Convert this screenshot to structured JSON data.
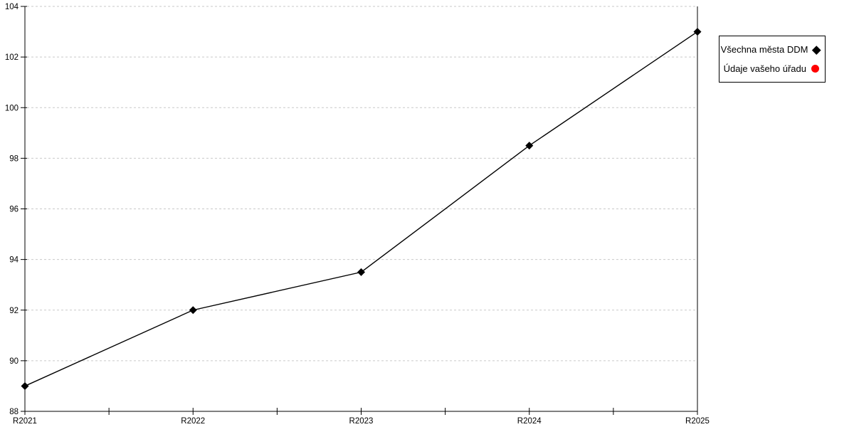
{
  "chart_data": {
    "type": "line",
    "title": "",
    "xlabel": "",
    "ylabel": "",
    "categories": [
      "R2021",
      "R2022",
      "R2023",
      "R2024",
      "R2025"
    ],
    "series": [
      {
        "name": "Všechna města DDM",
        "marker": "diamond",
        "color": "#000000",
        "values": [
          89,
          92,
          93.5,
          98.5,
          103
        ]
      },
      {
        "name": "Údaje vašeho úřadu",
        "marker": "circle",
        "color": "#ff0000",
        "values": []
      }
    ],
    "ylim": [
      88,
      104
    ],
    "yticks": [
      88,
      90,
      92,
      94,
      96,
      98,
      100,
      102,
      104
    ],
    "x_minor_ticks_between": true,
    "grid": {
      "horizontal": true,
      "style": "dashed",
      "color": "#c9c9c9"
    },
    "axis_color": "#000000",
    "legend_position": "right"
  }
}
